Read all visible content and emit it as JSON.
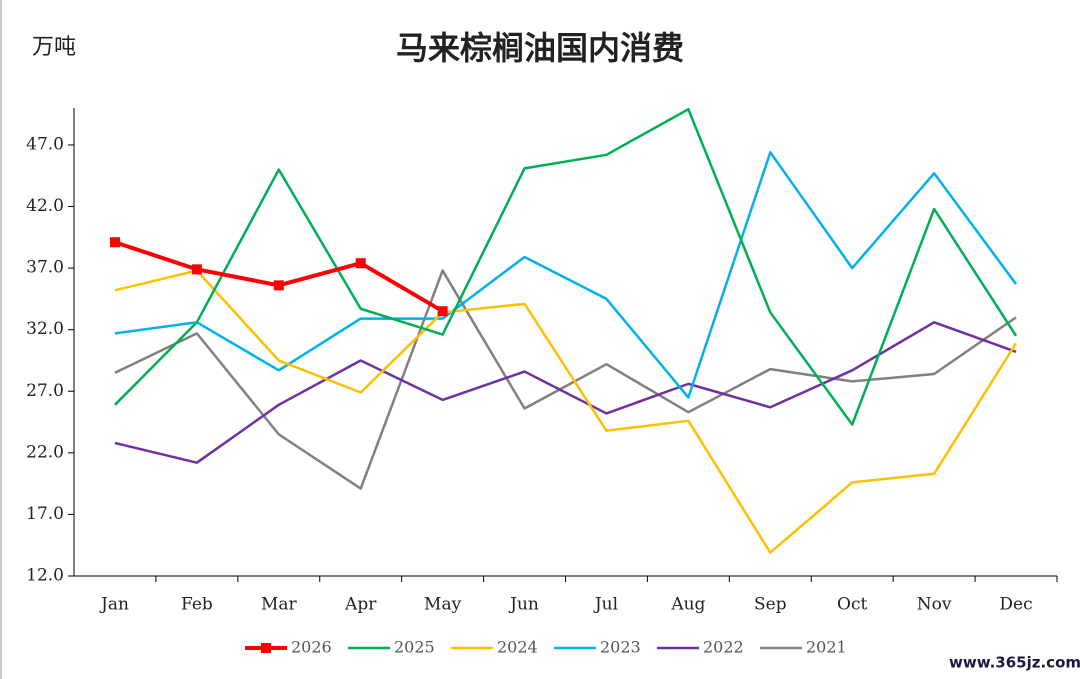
{
  "chart_data": {
    "type": "line",
    "title": "马来棕榈油国内消费",
    "unit": "万吨",
    "watermark": "www.365jz.com",
    "categories": [
      "Jan",
      "Feb",
      "Mar",
      "Apr",
      "May",
      "Jun",
      "Jul",
      "Aug",
      "Sep",
      "Oct",
      "Nov",
      "Dec"
    ],
    "ylim": [
      12,
      50
    ],
    "yticks": [
      {
        "value": 12,
        "label": "12.0"
      },
      {
        "value": 17,
        "label": "17.0"
      },
      {
        "value": 22,
        "label": "22.0"
      },
      {
        "value": 27,
        "label": "27.0"
      },
      {
        "value": 32,
        "label": "32.0"
      },
      {
        "value": 37,
        "label": "37.0"
      },
      {
        "value": 42,
        "label": "42.0"
      },
      {
        "value": 47,
        "label": "47.0"
      }
    ],
    "series": [
      {
        "name": "2026",
        "color": "#ff0000",
        "marker": "square",
        "values": [
          39.1,
          36.9,
          35.6,
          37.4,
          33.5,
          null,
          null,
          null,
          null,
          null,
          null,
          null
        ]
      },
      {
        "name": "2025",
        "color": "#00b050",
        "values": [
          25.9,
          32.6,
          45.0,
          33.7,
          31.6,
          45.1,
          46.2,
          49.9,
          33.4,
          24.3,
          41.8,
          31.5
        ]
      },
      {
        "name": "2024",
        "color": "#ffc000",
        "values": [
          35.2,
          36.8,
          29.5,
          26.9,
          33.4,
          34.1,
          23.8,
          24.6,
          13.9,
          19.6,
          20.3,
          30.9
        ]
      },
      {
        "name": "2023",
        "color": "#00b0f0",
        "values": [
          31.7,
          32.6,
          28.7,
          32.9,
          32.9,
          37.9,
          34.5,
          26.5,
          46.4,
          37.0,
          44.7,
          35.7
        ]
      },
      {
        "name": "2022",
        "color": "#7030a0",
        "values": [
          22.8,
          21.2,
          25.9,
          29.5,
          26.3,
          28.6,
          25.2,
          27.6,
          25.7,
          28.7,
          32.6,
          30.2
        ]
      },
      {
        "name": "2021",
        "color": "#808080",
        "values": [
          28.5,
          31.7,
          23.5,
          19.1,
          36.8,
          25.6,
          29.2,
          25.3,
          28.8,
          27.8,
          28.4,
          33.0
        ]
      }
    ]
  }
}
